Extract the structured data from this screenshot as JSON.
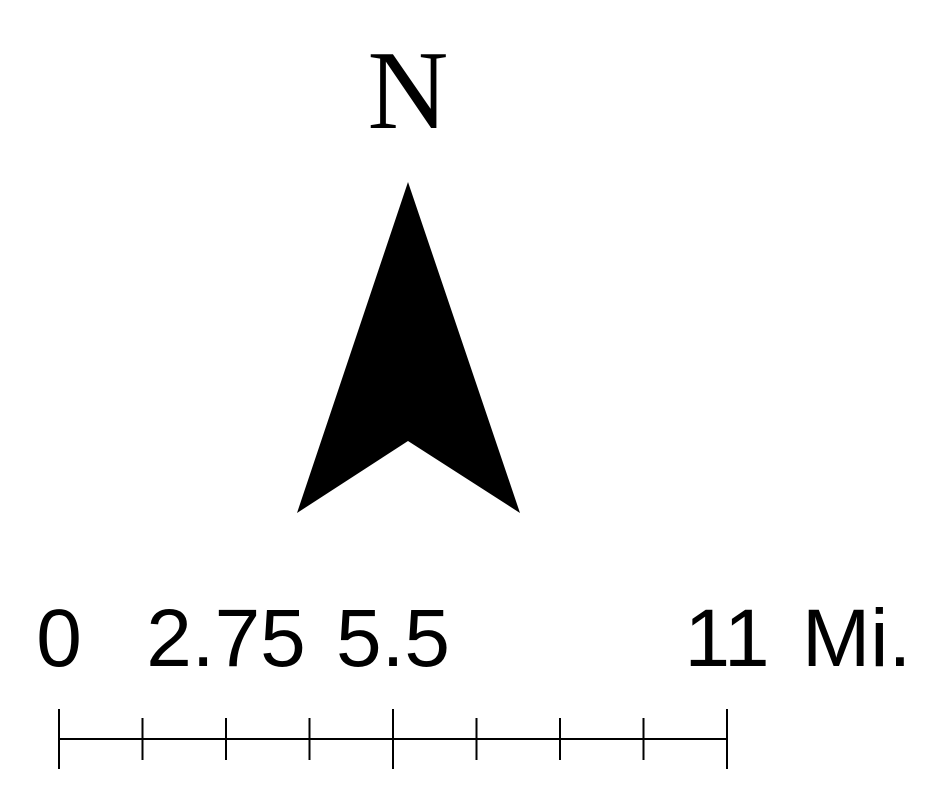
{
  "north_arrow": {
    "letter": "N",
    "color": "#000000"
  },
  "scale_bar": {
    "unit": "Mi.",
    "max": 11,
    "divisions": 8,
    "labels": [
      {
        "value": 0,
        "text": "0"
      },
      {
        "value": 2.75,
        "text": "2.75"
      },
      {
        "value": 5.5,
        "text": "5.5"
      },
      {
        "value": 11,
        "text": "11"
      }
    ],
    "color": "#000000"
  }
}
